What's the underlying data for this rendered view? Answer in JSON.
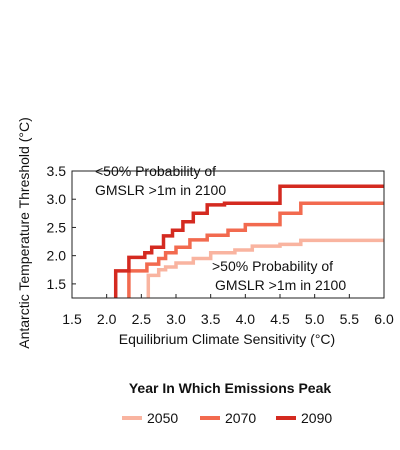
{
  "chart_data": {
    "type": "line",
    "step": true,
    "xlabel": "Equilibrium Climate Sensitivity (°C)",
    "ylabel": "Antarctic Temperature Threshold (°C)",
    "xlim": [
      1.5,
      6.0
    ],
    "ylim": [
      1.25,
      3.5
    ],
    "xticks": [
      "1.5",
      "2.0",
      "2.5",
      "3.0",
      "3.5",
      "4.0",
      "4.5",
      "5.0",
      "5.5",
      "6.0"
    ],
    "yticks": [
      "1.5",
      "2.0",
      "2.5",
      "3.0",
      "3.5"
    ],
    "grid": false,
    "legend": {
      "title": "Year In Which Emissions Peak",
      "position": "bottom"
    },
    "annotations": {
      "upper": [
        "<50% Probability of",
        "GMSLR >1m in 2100"
      ],
      "lower": [
        ">50% Probability of",
        "GMSLR >1m in 2100"
      ]
    },
    "series": [
      {
        "name": "2050",
        "color": "#f9b4a0",
        "points": [
          [
            2.6,
            1.25
          ],
          [
            2.6,
            1.65
          ],
          [
            2.75,
            1.65
          ],
          [
            2.75,
            1.75
          ],
          [
            2.85,
            1.75
          ],
          [
            2.85,
            1.8
          ],
          [
            3.0,
            1.8
          ],
          [
            3.0,
            1.87
          ],
          [
            3.25,
            1.87
          ],
          [
            3.25,
            1.95
          ],
          [
            3.5,
            1.95
          ],
          [
            3.5,
            2.05
          ],
          [
            3.85,
            2.05
          ],
          [
            3.85,
            2.1
          ],
          [
            4.1,
            2.1
          ],
          [
            4.1,
            2.17
          ],
          [
            4.5,
            2.17
          ],
          [
            4.5,
            2.2
          ],
          [
            4.8,
            2.2
          ],
          [
            4.8,
            2.27
          ],
          [
            6.0,
            2.27
          ]
        ]
      },
      {
        "name": "2070",
        "color": "#f26a4f",
        "points": [
          [
            2.32,
            1.25
          ],
          [
            2.32,
            1.73
          ],
          [
            2.58,
            1.73
          ],
          [
            2.58,
            1.85
          ],
          [
            2.75,
            1.85
          ],
          [
            2.75,
            1.95
          ],
          [
            2.85,
            1.95
          ],
          [
            2.85,
            2.05
          ],
          [
            3.0,
            2.05
          ],
          [
            3.0,
            2.15
          ],
          [
            3.2,
            2.15
          ],
          [
            3.2,
            2.28
          ],
          [
            3.45,
            2.28
          ],
          [
            3.45,
            2.36
          ],
          [
            3.75,
            2.36
          ],
          [
            3.75,
            2.45
          ],
          [
            4.0,
            2.45
          ],
          [
            4.0,
            2.55
          ],
          [
            4.5,
            2.55
          ],
          [
            4.5,
            2.75
          ],
          [
            4.8,
            2.75
          ],
          [
            4.8,
            2.93
          ],
          [
            6.0,
            2.93
          ]
        ]
      },
      {
        "name": "2090",
        "color": "#d42a20",
        "points": [
          [
            2.13,
            1.25
          ],
          [
            2.13,
            1.73
          ],
          [
            2.32,
            1.73
          ],
          [
            2.32,
            1.97
          ],
          [
            2.55,
            1.97
          ],
          [
            2.55,
            2.05
          ],
          [
            2.65,
            2.05
          ],
          [
            2.65,
            2.15
          ],
          [
            2.82,
            2.15
          ],
          [
            2.82,
            2.35
          ],
          [
            2.95,
            2.35
          ],
          [
            2.95,
            2.45
          ],
          [
            3.1,
            2.45
          ],
          [
            3.1,
            2.6
          ],
          [
            3.25,
            2.6
          ],
          [
            3.25,
            2.75
          ],
          [
            3.45,
            2.75
          ],
          [
            3.45,
            2.9
          ],
          [
            3.7,
            2.9
          ],
          [
            3.7,
            2.93
          ],
          [
            4.5,
            2.93
          ],
          [
            4.5,
            3.23
          ],
          [
            6.0,
            3.23
          ]
        ]
      }
    ]
  }
}
